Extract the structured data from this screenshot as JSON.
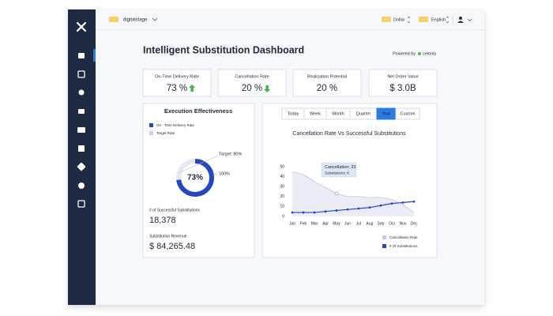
{
  "topbar": {
    "workspace": "digitalstage",
    "currency": "Dollar",
    "language": "English"
  },
  "header": {
    "title": "Intelligent Substitution Dashboard",
    "powered_by": "Powered by",
    "brand": "celonis"
  },
  "kpis": [
    {
      "label": "On-Time Delivery Rate",
      "value": "73 %",
      "trend": "up"
    },
    {
      "label": "Cancellation Rate",
      "value": "20 %",
      "trend": "down"
    },
    {
      "label": "Realization Potential",
      "value": "20 %"
    },
    {
      "label": "Net Order Value",
      "value": "$ 3.0B"
    }
  ],
  "execution": {
    "title": "Execution Effectiveness",
    "legend": [
      "On - Time Delivery Rate",
      "Target Rate"
    ],
    "donut": {
      "value": 73,
      "label": "73%",
      "max": 100,
      "max_label": "100%",
      "target": 80,
      "target_label": "Target: 80%"
    },
    "metrics": [
      {
        "label": "# of Successful Substitutions",
        "value": "18,378"
      },
      {
        "label": "Substitution Revenue",
        "value": "$ 84,265.48"
      }
    ]
  },
  "tabs": {
    "items": [
      "Today",
      "Week",
      "Month",
      "Quarter",
      "Year",
      "Custom"
    ],
    "active": 4
  },
  "chart_data": {
    "type": "line",
    "title": "Cancellation Rate Vs Successful Substitutions",
    "categories": [
      "Jan",
      "Feb",
      "Mar",
      "Apr",
      "May",
      "Jun",
      "Jul",
      "Aug",
      "Sep",
      "Oct",
      "Nov",
      "Dec"
    ],
    "series": [
      {
        "name": "Cancellation Rate",
        "color": "#c3c9e6",
        "fill": true,
        "values": [
          45,
          42,
          35,
          29,
          23,
          20,
          20,
          19,
          19,
          17,
          12,
          4
        ]
      },
      {
        "name": "# Of Substitutions",
        "color": "#2647c2",
        "markers": true,
        "values": [
          4,
          4,
          4,
          5,
          6,
          7,
          8,
          9,
          11,
          13,
          14,
          15
        ]
      }
    ],
    "ylim": [
      0,
      50
    ],
    "yticks": [
      0,
      10,
      20,
      30,
      40,
      50
    ],
    "grid": false,
    "tooltip": {
      "index": 4,
      "lines": [
        "Cancellation: 23",
        "Substitutions: 6"
      ]
    }
  }
}
